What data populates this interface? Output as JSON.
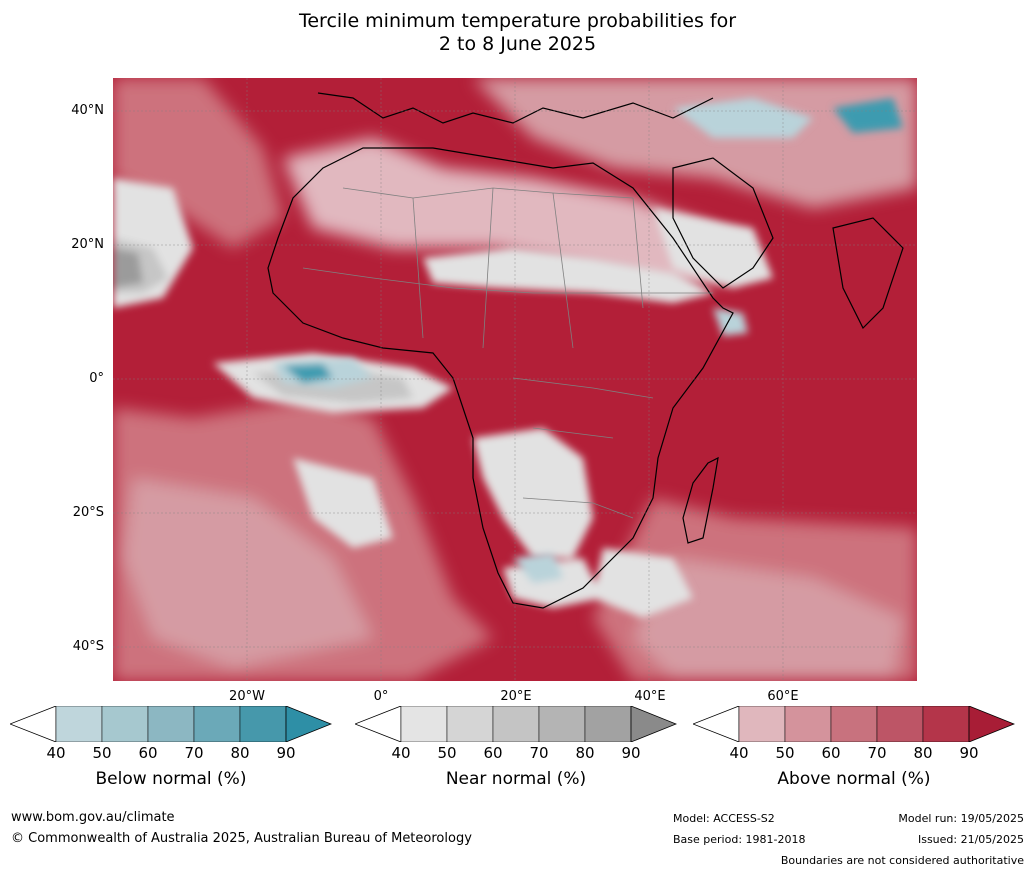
{
  "title": {
    "line1": "Tercile minimum temperature probabilities for",
    "line2": "2 to 8 June 2025"
  },
  "map": {
    "lat_labels": [
      "40°N",
      "20°N",
      "0°",
      "20°S",
      "40°S"
    ],
    "lon_labels": [
      "20°W",
      "0°",
      "20°E",
      "40°E",
      "60°E"
    ],
    "colors": {
      "ocean_base": "#b21e37",
      "above_90": "#b31f38",
      "above_80": "#c2505f",
      "above_70": "#cd727d",
      "above_60": "#d59ba3",
      "above_50": "#e1b8bf",
      "near_light": "#e2e2e2",
      "near_mid": "#c6c6c6",
      "near_dark": "#9b9b9b",
      "below_light": "#b9d3da",
      "below_mid": "#7bb1c0",
      "below_dark": "#3c9bb0",
      "coast": "#000000",
      "borders": "#808080"
    }
  },
  "colorbars": [
    {
      "name": "below",
      "title": "Below normal (%)",
      "ticks": [
        "40",
        "50",
        "60",
        "70",
        "80",
        "90"
      ],
      "colors": [
        "#bfd6dc",
        "#a6c8cf",
        "#8cb7c2",
        "#6ba9b8",
        "#4698ab",
        "#2e8fa6"
      ]
    },
    {
      "name": "near",
      "title": "Near normal (%)",
      "ticks": [
        "40",
        "50",
        "60",
        "70",
        "80",
        "90"
      ],
      "colors": [
        "#e4e4e4",
        "#d5d5d5",
        "#c4c4c4",
        "#b4b4b4",
        "#a2a2a2",
        "#8a8a8a"
      ]
    },
    {
      "name": "above",
      "title": "Above normal (%)",
      "ticks": [
        "40",
        "50",
        "60",
        "70",
        "80",
        "90"
      ],
      "colors": [
        "#e0b7bd",
        "#d4939c",
        "#c8727e",
        "#bd5566",
        "#b4354a",
        "#a81d36"
      ]
    }
  ],
  "footer": {
    "website": "www.bom.gov.au/climate",
    "copyright": "© Commonwealth of Australia 2025, Australian Bureau of Meteorology",
    "model": "Model: ACCESS-S2",
    "base_period": "Base period: 1981-2018",
    "model_run": "Model run: 19/05/2025",
    "issued": "Issued: 21/05/2025",
    "disclaimer": "Boundaries are not considered authoritative"
  }
}
